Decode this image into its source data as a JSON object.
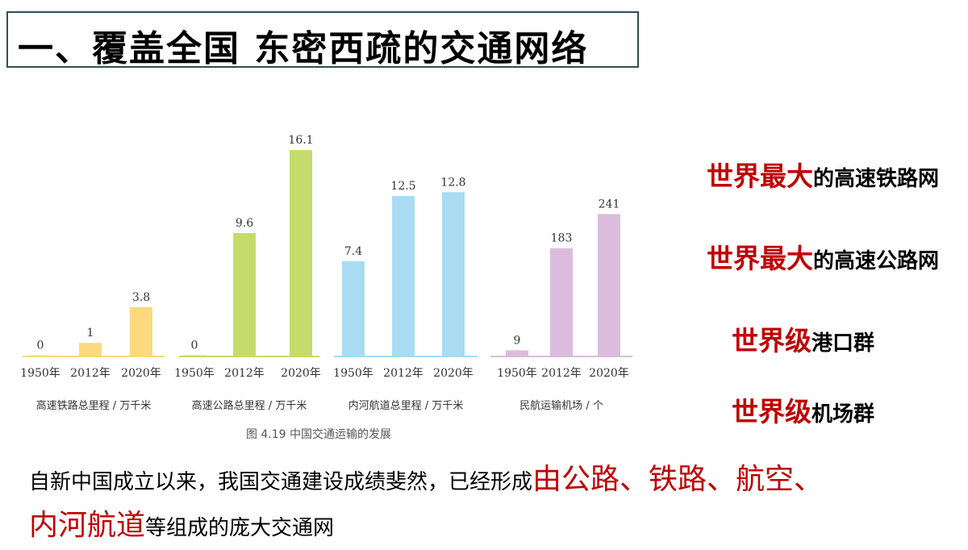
{
  "title": "一、覆盖全国 东密西疏的交通网络",
  "chart_data": [
    {
      "type": "bar",
      "categories": [
        "1950年",
        "2012年",
        "2020年"
      ],
      "values": [
        0,
        1,
        3.8
      ],
      "value_labels": [
        "0",
        "1",
        "3.8"
      ],
      "xlabel": "高速铁路总里程 / 万千米",
      "color": "#fad97f",
      "ylim": [
        0,
        16.1
      ]
    },
    {
      "type": "bar",
      "categories": [
        "1950年",
        "2012年",
        "2020年"
      ],
      "values": [
        0,
        9.6,
        16.1
      ],
      "value_labels": [
        "0",
        "9.6",
        "16.1"
      ],
      "xlabel": "高速公路总里程 / 万千米",
      "color": "#c6dc6a",
      "ylim": [
        0,
        16.1
      ]
    },
    {
      "type": "bar",
      "categories": [
        "1950年",
        "2012年",
        "2020年"
      ],
      "values": [
        7.4,
        12.5,
        12.8
      ],
      "value_labels": [
        "7.4",
        "12.5",
        "12.8"
      ],
      "xlabel": "内河航道总里程 / 万千米",
      "color": "#a9dcf3",
      "ylim": [
        0,
        16.1
      ]
    },
    {
      "type": "bar",
      "categories": [
        "1950年",
        "2012年",
        "2020年"
      ],
      "values": [
        9,
        183,
        241
      ],
      "value_labels": [
        "9",
        "183",
        "241"
      ],
      "xlabel": "民航运输机场 / 个",
      "color": "#dcbcdc",
      "ylim": [
        0,
        350
      ]
    }
  ],
  "figure_caption": "图 4.19    中国交通运输的发展",
  "facts": [
    {
      "highlight": "世界最大",
      "rest": "的高速铁路网"
    },
    {
      "highlight": "世界最大",
      "rest": "的高速公路网"
    },
    {
      "highlight": "世界级",
      "rest": "港口群"
    },
    {
      "highlight": "世界级",
      "rest": "机场群"
    }
  ],
  "paragraph": {
    "part1": "自新中国成立以来，我国交通建设成绩斐然，已经形成",
    "highlight1": "由公路、铁路、航空、",
    "highlight2": "内河航道",
    "part2": "等组成的庞大交通网"
  }
}
